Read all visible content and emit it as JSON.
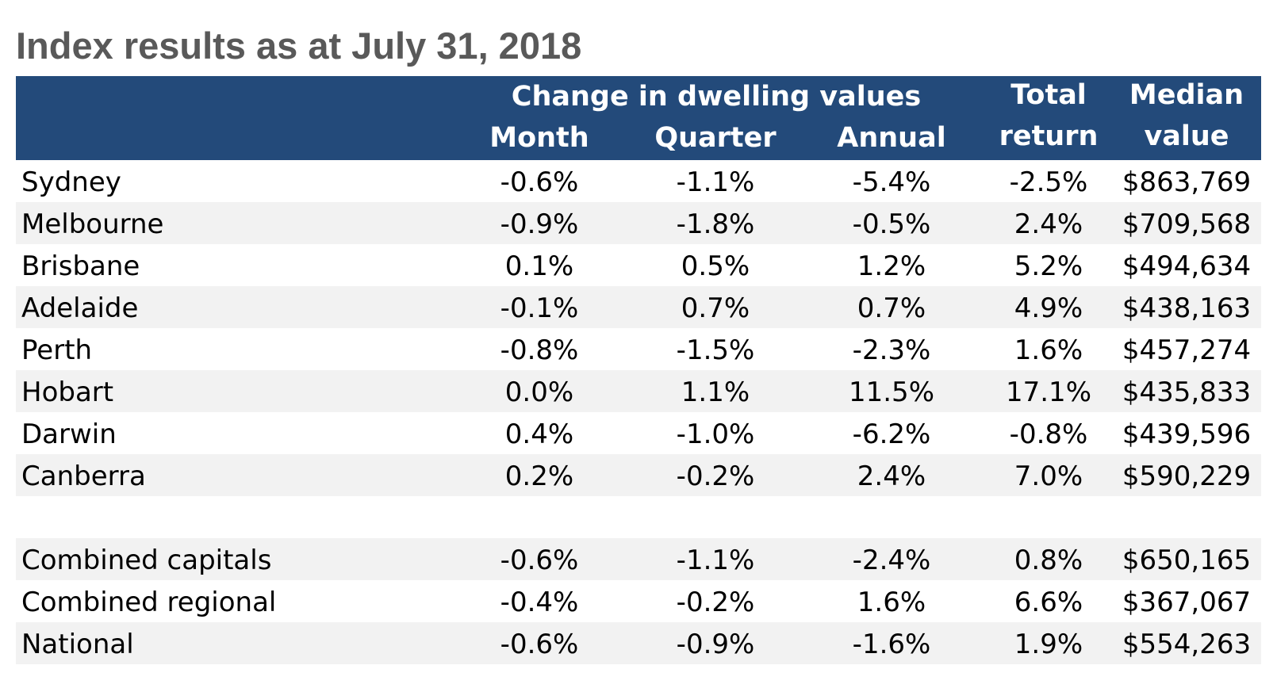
{
  "title": "Index results as at July 31, 2018",
  "header": {
    "group": "Change in dwelling values",
    "month": "Month",
    "quarter": "Quarter",
    "annual": "Annual",
    "total_line1": "Total",
    "total_line2": "return",
    "median_line1": "Median",
    "median_line2": "value"
  },
  "colors": {
    "header_bg": "#234a7a",
    "header_text": "#ffffff",
    "row_shade": "#f2f2f2",
    "title_text": "#595959"
  },
  "chart_data": {
    "type": "table",
    "title": "Index results as at July 31, 2018",
    "columns": [
      "",
      "Month",
      "Quarter",
      "Annual",
      "Total return",
      "Median value"
    ],
    "rows": [
      {
        "region": "Sydney",
        "month": "-0.6%",
        "quarter": "-1.1%",
        "annual": "-5.4%",
        "total": "-2.5%",
        "median": "$863,769"
      },
      {
        "region": "Melbourne",
        "month": "-0.9%",
        "quarter": "-1.8%",
        "annual": "-0.5%",
        "total": "2.4%",
        "median": "$709,568"
      },
      {
        "region": "Brisbane",
        "month": "0.1%",
        "quarter": "0.5%",
        "annual": "1.2%",
        "total": "5.2%",
        "median": "$494,634"
      },
      {
        "region": "Adelaide",
        "month": "-0.1%",
        "quarter": "0.7%",
        "annual": "0.7%",
        "total": "4.9%",
        "median": "$438,163"
      },
      {
        "region": "Perth",
        "month": "-0.8%",
        "quarter": "-1.5%",
        "annual": "-2.3%",
        "total": "1.6%",
        "median": "$457,274"
      },
      {
        "region": "Hobart",
        "month": "0.0%",
        "quarter": "1.1%",
        "annual": "11.5%",
        "total": "17.1%",
        "median": "$435,833"
      },
      {
        "region": "Darwin",
        "month": "0.4%",
        "quarter": "-1.0%",
        "annual": "-6.2%",
        "total": "-0.8%",
        "median": "$439,596"
      },
      {
        "region": "Canberra",
        "month": "0.2%",
        "quarter": "-0.2%",
        "annual": "2.4%",
        "total": "7.0%",
        "median": "$590,229"
      }
    ],
    "summary_rows": [
      {
        "region": "Combined capitals",
        "month": "-0.6%",
        "quarter": "-1.1%",
        "annual": "-2.4%",
        "total": "0.8%",
        "median": "$650,165"
      },
      {
        "region": "Combined regional",
        "month": "-0.4%",
        "quarter": "-0.2%",
        "annual": "1.6%",
        "total": "6.6%",
        "median": "$367,067"
      },
      {
        "region": "National",
        "month": "-0.6%",
        "quarter": "-0.9%",
        "annual": "-1.6%",
        "total": "1.9%",
        "median": "$554,263"
      }
    ]
  }
}
